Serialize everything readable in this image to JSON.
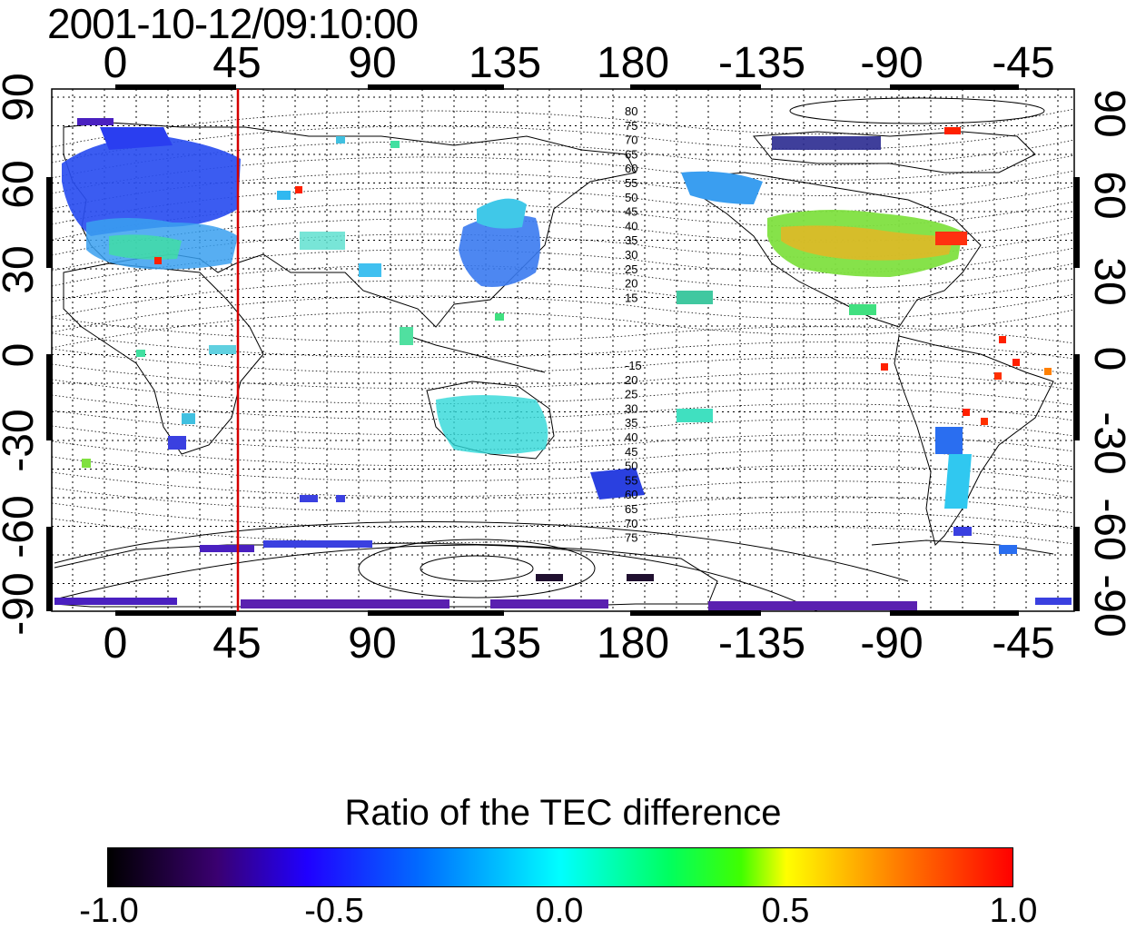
{
  "title": "2001-10-12/09:10:00",
  "lon_top": [
    "0",
    "45",
    "90",
    "135",
    "180",
    "-135",
    "-90",
    "-45"
  ],
  "lon_bottom": [
    "0",
    "45",
    "90",
    "135",
    "180",
    "-135",
    "-90",
    "-45"
  ],
  "lat_left": [
    "90",
    "60",
    "30",
    "0",
    "-30",
    "-60",
    "-90"
  ],
  "lat_right": [
    "90",
    "60",
    "30",
    "0",
    "-30",
    "-60",
    "-90"
  ],
  "contour_labels_north": [
    "80",
    "75",
    "70",
    "65",
    "60",
    "55",
    "50",
    "45",
    "40",
    "35",
    "30",
    "25",
    "20",
    "15"
  ],
  "contour_labels_south": [
    "-15",
    "20",
    "25",
    "30",
    "35",
    "40",
    "45",
    "50",
    "55",
    "60",
    "65",
    "70",
    "75"
  ],
  "colorbar": {
    "title": "Ratio of the TEC difference",
    "ticks": [
      "-1.0",
      "-0.5",
      "0.0",
      "0.5",
      "1.0"
    ],
    "range": [
      -1.0,
      1.0
    ]
  },
  "marker_longitude": 45,
  "colors": {
    "marker_line": "#d40000",
    "grid": "#000000"
  }
}
